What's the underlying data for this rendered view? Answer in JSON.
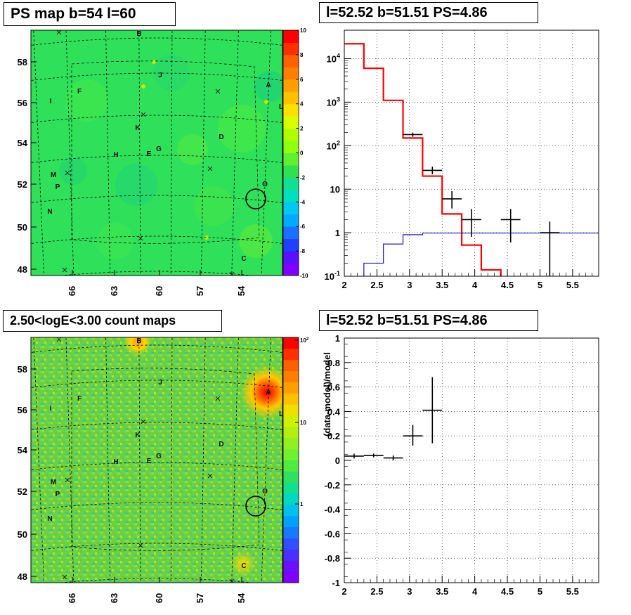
{
  "panels": {
    "top_left_title": "PS map b=54 l=60",
    "top_right_title": "l=52.52 b=51.51 PS=4.86",
    "bottom_left_title": "2.50<logE<3.00 count maps",
    "bottom_right_title": "l=52.52 b=51.51 PS=4.86"
  },
  "colors": {
    "map_green": "#2fe05a",
    "model_red": "#ff0000",
    "baseline_blue": "#0000cc",
    "data_black": "#000000",
    "grid": "#000000"
  },
  "chart_data": [
    {
      "type": "heatmap",
      "name": "ps-map",
      "title": "PS map b=54 l=60",
      "x_ticks": [
        "66",
        "63",
        "60",
        "57",
        "54"
      ],
      "y_ticks": [
        "58",
        "56",
        "54",
        "52",
        "50",
        "48"
      ],
      "colorbar_ticks": [
        "10",
        "8",
        "6",
        "4",
        "2",
        "0",
        "-2",
        "-4",
        "-6",
        "-8",
        "-10"
      ],
      "colorbar_range": [
        -10,
        10
      ],
      "source_labels": [
        "A",
        "B",
        "C",
        "D",
        "E",
        "F",
        "G",
        "H",
        "I",
        "J",
        "K",
        "L",
        "M",
        "N",
        "O",
        "P"
      ]
    },
    {
      "type": "line",
      "name": "spectrum",
      "title": "l=52.52 b=51.51 PS=4.86",
      "x_ticks": [
        "2",
        "2.5",
        "3",
        "3.5",
        "4",
        "4.5",
        "5",
        "5.5"
      ],
      "y_tick_labels": [
        "10^4",
        "10^3",
        "10^2",
        "10",
        "1",
        "10^-1"
      ],
      "yscale": "log",
      "xlim": [
        2,
        5.9
      ],
      "ylim": [
        0.1,
        45000
      ],
      "series": [
        {
          "kind": "step",
          "edges": [
            2.0,
            2.3,
            2.6,
            2.9,
            3.2,
            3.5,
            3.8,
            4.1,
            4.4
          ],
          "values": [
            22000,
            6000,
            1100,
            150,
            20,
            2.7,
            0.52,
            0.14
          ]
        },
        {
          "kind": "step",
          "edges": [
            2.3,
            2.6,
            2.9,
            3.2,
            5.9
          ],
          "values": [
            0.2,
            0.55,
            0.9,
            0.98
          ]
        },
        {
          "kind": "points",
          "x": [
            3.05,
            3.35,
            3.65,
            3.95,
            4.55,
            5.15
          ],
          "y": [
            180,
            27,
            6,
            2,
            2,
            1
          ],
          "xerr": [
            0.15,
            0.15,
            0.15,
            0.15,
            0.15,
            0.15
          ],
          "ylo": [
            160,
            22,
            3.6,
            0.8,
            0.6,
            0.1
          ],
          "yhi": [
            200,
            33,
            9,
            3.5,
            3.5,
            1.8
          ]
        }
      ]
    },
    {
      "type": "heatmap",
      "name": "count-map",
      "title": "2.50<logE<3.00 count maps",
      "x_ticks": [
        "66",
        "63",
        "60",
        "57",
        "54"
      ],
      "y_ticks": [
        "58",
        "56",
        "54",
        "52",
        "50",
        "48"
      ],
      "colorbar_ticks": [
        "10^2",
        "10",
        "1"
      ],
      "colorbar_scale": "log",
      "source_labels": [
        "A",
        "B",
        "C",
        "D",
        "E",
        "F",
        "G",
        "H",
        "I",
        "J",
        "K",
        "L",
        "M",
        "N",
        "O",
        "P"
      ]
    },
    {
      "type": "scatter",
      "name": "residuals",
      "title": "l=52.52 b=51.51 PS=4.86",
      "ylabel": "(data-model)/model",
      "x_ticks": [
        "2",
        "2.5",
        "3",
        "3.5",
        "4",
        "4.5",
        "5",
        "5.5"
      ],
      "y_ticks": [
        "1",
        "0.8",
        "0.6",
        "0.4",
        "0.2",
        "0",
        "-0.2",
        "-0.4",
        "-0.6",
        "-0.8",
        "-1"
      ],
      "xlim": [
        2,
        5.9
      ],
      "ylim": [
        -1,
        1
      ],
      "points": {
        "x": [
          2.15,
          2.45,
          2.75,
          3.05,
          3.35
        ],
        "y": [
          0.035,
          0.04,
          0.02,
          0.2,
          0.41
        ],
        "xerr": [
          0.15,
          0.15,
          0.15,
          0.15,
          0.15
        ],
        "ylo": [
          0.015,
          0.025,
          0.0,
          0.12,
          0.14
        ],
        "yhi": [
          0.055,
          0.055,
          0.04,
          0.29,
          0.68
        ]
      }
    }
  ]
}
